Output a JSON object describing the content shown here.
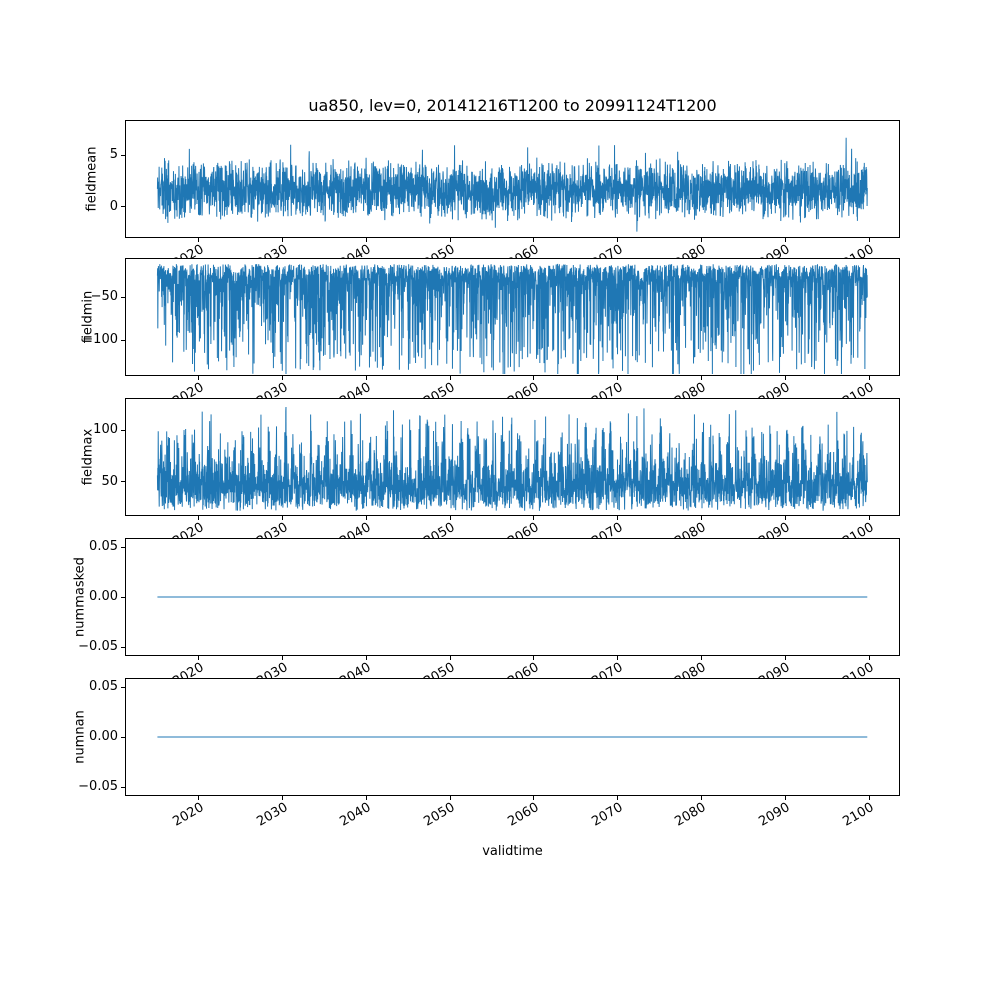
{
  "figure": {
    "title": "ua850, lev=0, 20141216T1200 to 20991124T1200",
    "xlabel": "validtime",
    "line_color": "#1f77b4",
    "background": "#ffffff",
    "xlim": [
      2011.2,
      2103.7
    ],
    "x_data_range": [
      2014.96,
      2099.9
    ],
    "xtick_values": [
      2020,
      2030,
      2040,
      2050,
      2060,
      2070,
      2080,
      2090,
      2100
    ],
    "xtick_labels": [
      "2020",
      "2030",
      "2040",
      "2050",
      "2060",
      "2070",
      "2080",
      "2090",
      "2100"
    ]
  },
  "chart_data": [
    {
      "type": "line",
      "ylabel": "fieldmean",
      "yticks": [
        0,
        5
      ],
      "ytick_labels": [
        "0",
        "5"
      ],
      "ylim": [
        -3.0,
        8.4
      ],
      "grid": false,
      "legend": "none",
      "series": [
        {
          "name": "fieldmean",
          "summary": "high-frequency noisy line over 2015-2100; typical band −2 to 5, extremes about −3 and 8.5"
        }
      ],
      "gen": {
        "kind": "noisy-mean",
        "n": 3400,
        "base": 1.6,
        "amp": 3.2,
        "spike_p": 0.015,
        "spike_hi": 3.0,
        "spike_lo": 1.5,
        "seed": 11
      }
    },
    {
      "type": "line",
      "ylabel": "fieldmin",
      "yticks": [
        -50,
        -100
      ],
      "ytick_labels": [
        "−50",
        "−100"
      ],
      "ylim": [
        -142,
        -4
      ],
      "grid": false,
      "legend": "none",
      "series": [
        {
          "name": "fieldmin",
          "summary": "dense band −10 to −35 with frequent downward spikes reaching about −135"
        }
      ],
      "gen": {
        "kind": "noisy-min",
        "n": 3600,
        "base": -10,
        "band": 22,
        "spike": 118,
        "pow": 5,
        "seed": 22
      }
    },
    {
      "type": "line",
      "ylabel": "fieldmax",
      "yticks": [
        50,
        100
      ],
      "ytick_labels": [
        "50",
        "100"
      ],
      "ylim": [
        17,
        131
      ],
      "grid": false,
      "legend": "none",
      "series": [
        {
          "name": "fieldmax",
          "summary": "dense band 20 to 60 with annual clusters of upward spikes reaching about 128"
        }
      ],
      "gen": {
        "kind": "noisy-max",
        "n": 3600,
        "base": 21,
        "band": 33,
        "spike": 78,
        "pow": 3,
        "season_min": 0.25,
        "seed": 33
      }
    },
    {
      "type": "line",
      "ylabel": "nummasked",
      "yticks": [
        0.05,
        0.0,
        -0.05
      ],
      "ytick_labels": [
        "0.05",
        "0.00",
        "−0.05"
      ],
      "ylim": [
        -0.059,
        0.059
      ],
      "grid": false,
      "legend": "none",
      "series": [
        {
          "name": "nummasked",
          "summary": "constant value 0 for the whole period 2015-2100"
        }
      ],
      "gen": {
        "kind": "flat",
        "value": 0
      }
    },
    {
      "type": "line",
      "ylabel": "numnan",
      "yticks": [
        0.05,
        0.0,
        -0.05
      ],
      "ytick_labels": [
        "0.05",
        "0.00",
        "−0.05"
      ],
      "ylim": [
        -0.059,
        0.059
      ],
      "grid": false,
      "legend": "none",
      "series": [
        {
          "name": "numnan",
          "summary": "constant value 0 for the whole period 2015-2100"
        }
      ],
      "gen": {
        "kind": "flat",
        "value": 0
      }
    }
  ]
}
